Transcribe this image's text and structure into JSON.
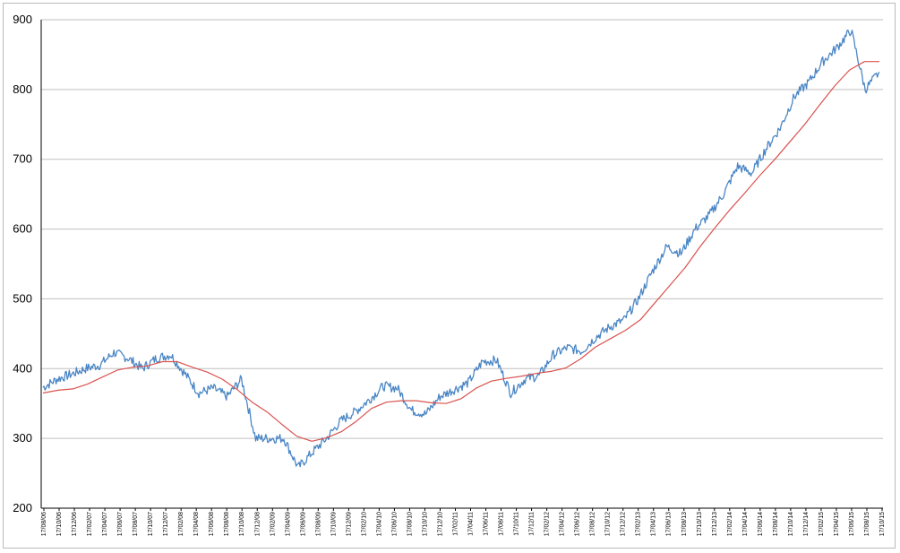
{
  "chart_data": {
    "type": "line",
    "title": "",
    "xlabel": "",
    "ylabel": "",
    "ylim": [
      200,
      900
    ],
    "y_ticks": [
      200,
      300,
      400,
      500,
      600,
      700,
      800,
      900
    ],
    "grid": "horizontal",
    "legend": "none",
    "x_tick_labels": [
      "17/08/06",
      "17/10/06",
      "17/12/06",
      "17/02/07",
      "17/04/07",
      "17/06/07",
      "17/08/07",
      "17/10/07",
      "17/12/07",
      "17/02/08",
      "17/04/08",
      "17/06/08",
      "17/08/08",
      "17/10/08",
      "17/12/08",
      "17/02/09",
      "17/04/09",
      "17/06/09",
      "17/08/09",
      "17/10/09",
      "17/12/09",
      "17/02/10",
      "17/04/10",
      "17/06/10",
      "17/08/10",
      "17/10/10",
      "17/12/10",
      "17/02/11",
      "17/04/11",
      "17/06/11",
      "17/08/11",
      "17/10/11",
      "17/12/11",
      "17/02/12",
      "17/04/12",
      "17/06/12",
      "17/08/12",
      "17/10/12",
      "17/12/12",
      "17/02/13",
      "17/04/13",
      "17/06/13",
      "17/08/13",
      "17/10/13",
      "17/12/13",
      "17/02/14",
      "17/04/14",
      "17/06/14",
      "17/08/14",
      "17/10/14",
      "17/12/14",
      "17/02/15",
      "17/04/15",
      "17/06/15",
      "17/08/15",
      "17/10/15"
    ],
    "series": [
      {
        "color": "#4a86c5",
        "values": [
          373,
          385,
          392,
          400,
          405,
          423,
          415,
          400,
          415,
          420,
          393,
          365,
          372,
          360,
          385,
          300,
          300,
          300,
          258,
          280,
          300,
          325,
          338,
          355,
          375,
          372,
          340,
          335,
          360,
          370,
          380,
          410,
          412,
          365,
          385,
          390,
          420,
          430,
          425,
          445,
          460,
          470,
          500,
          540,
          575,
          565,
          600,
          620,
          650,
          690,
          680,
          715,
          745,
          790,
          810,
          840,
          860,
          885,
          800,
          825
        ]
      },
      {
        "color": "#d9534f",
        "values": [
          365,
          369,
          371,
          378,
          388,
          398,
          402,
          404,
          410,
          410,
          402,
          395,
          385,
          370,
          352,
          338,
          320,
          303,
          296,
          301,
          310,
          325,
          343,
          352,
          354,
          354,
          351,
          350,
          357,
          372,
          382,
          386,
          389,
          393,
          396,
          401,
          414,
          431,
          443,
          455,
          470,
          495,
          520,
          545,
          575,
          602,
          628,
          652,
          677,
          700,
          725,
          750,
          778,
          805,
          828,
          840,
          840
        ]
      }
    ],
    "colors": {
      "axis": "#000000",
      "grid": "#bfbfbf",
      "border": "#b9b9b9"
    }
  }
}
